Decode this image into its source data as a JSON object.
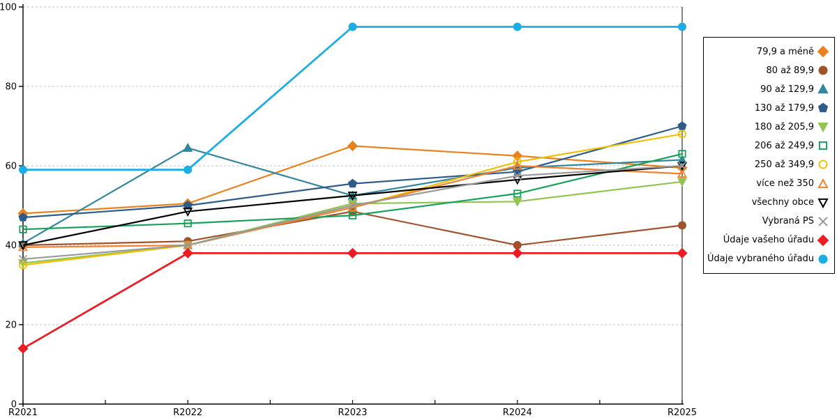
{
  "chart_data": {
    "type": "line",
    "title": "",
    "xlabel": "",
    "ylabel": "",
    "x": [
      "R2021",
      "R2022",
      "R2023",
      "R2024",
      "R2025"
    ],
    "ylim": [
      0,
      100
    ],
    "yticks": [
      0,
      20,
      40,
      60,
      80,
      100
    ],
    "grid": "horizontal-dashed",
    "legend_position": "right",
    "axis_color": "#000000",
    "gridline_color": "#bfbfbf",
    "series": [
      {
        "name": "79,9 a méně",
        "color": "#E8821E",
        "marker": "diamond",
        "fill": true,
        "line_width": 2.2,
        "values": [
          48,
          50.5,
          65,
          62.5,
          59.5
        ]
      },
      {
        "name": "80 až 89,9",
        "color": "#A0522D",
        "marker": "circle",
        "fill": true,
        "line_width": 2.2,
        "values": [
          40,
          41,
          48.5,
          40,
          45
        ]
      },
      {
        "name": "90 až 129,9",
        "color": "#31859C",
        "marker": "triangle-up",
        "fill": true,
        "line_width": 2.2,
        "values": [
          40.5,
          64.5,
          52.5,
          59.5,
          61.5
        ]
      },
      {
        "name": "130 až 179,9",
        "color": "#2E5C8A",
        "marker": "pentagon",
        "fill": true,
        "line_width": 2.2,
        "values": [
          47,
          50,
          55.5,
          58.5,
          70
        ]
      },
      {
        "name": "180 až 205,9",
        "color": "#92C353",
        "marker": "triangle-down",
        "fill": true,
        "line_width": 2.2,
        "values": [
          35.5,
          40,
          50.5,
          51,
          56
        ]
      },
      {
        "name": "206 až 249,9",
        "color": "#18A058",
        "marker": "square",
        "fill": false,
        "line_width": 2.2,
        "values": [
          44,
          45.5,
          47.5,
          53,
          63
        ]
      },
      {
        "name": "250 až 349,9",
        "color": "#EFC000",
        "marker": "circle",
        "fill": false,
        "line_width": 2.2,
        "values": [
          35,
          40,
          49.5,
          61,
          68
        ]
      },
      {
        "name": "více než 350",
        "color": "#F4812D",
        "marker": "triangle-up",
        "fill": false,
        "line_width": 2.2,
        "values": [
          39.5,
          40,
          49.5,
          60,
          58
        ]
      },
      {
        "name": "všechny obce",
        "color": "#000000",
        "marker": "triangle-down",
        "fill": false,
        "line_width": 2.2,
        "values": [
          40,
          48.5,
          52.5,
          56.5,
          60
        ]
      },
      {
        "name": "Vybraná PS",
        "color": "#999999",
        "marker": "x",
        "fill": false,
        "line_width": 2.2,
        "values": [
          36.5,
          40,
          50,
          57.5,
          60
        ]
      },
      {
        "name": "Údaje vašeho úřadu",
        "color": "#EC1C24",
        "marker": "diamond",
        "fill": true,
        "line_width": 2.8,
        "values": [
          14,
          38,
          38,
          38,
          38
        ]
      },
      {
        "name": "Údaje vybraného úřadu",
        "color": "#1CADE4",
        "marker": "circle",
        "fill": true,
        "line_width": 2.8,
        "values": [
          59,
          59,
          95,
          95,
          95
        ]
      }
    ]
  }
}
